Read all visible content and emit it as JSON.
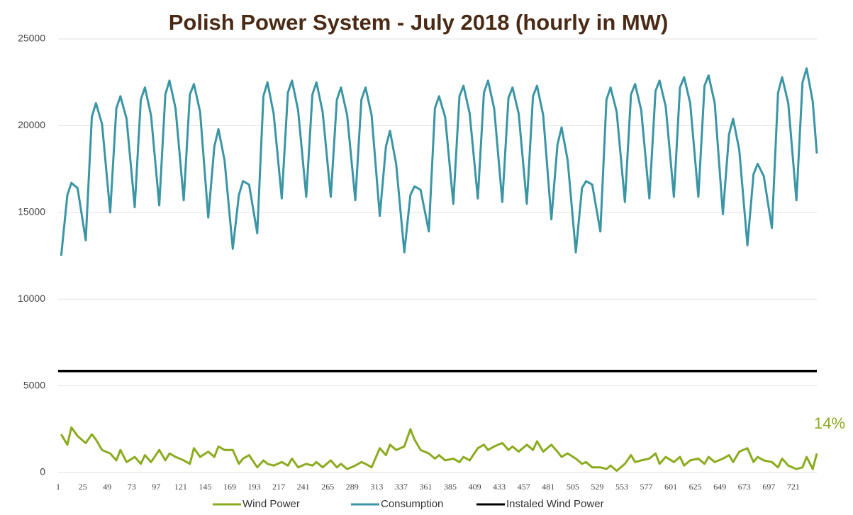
{
  "chart_data": {
    "type": "line",
    "title": "Polish Power System - July 2018 (hourly in MW)",
    "x": [
      4,
      10,
      14,
      20,
      28,
      34,
      38,
      44,
      52,
      58,
      62,
      68,
      76,
      82,
      86,
      92,
      100,
      106,
      110,
      116,
      124,
      130,
      134,
      140,
      148,
      154,
      158,
      164,
      172,
      178,
      182,
      188,
      196,
      202,
      206,
      212,
      220,
      226,
      230,
      236,
      244,
      250,
      254,
      260,
      268,
      274,
      278,
      284,
      292,
      298,
      302,
      308,
      316,
      322,
      326,
      332,
      340,
      346,
      350,
      356,
      364,
      370,
      374,
      380,
      388,
      394,
      398,
      404,
      412,
      418,
      422,
      428,
      436,
      442,
      446,
      452,
      460,
      466,
      470,
      476,
      484,
      490,
      494,
      500,
      508,
      514,
      518,
      524,
      532,
      538,
      542,
      548,
      556,
      562,
      566,
      572,
      580,
      586,
      590,
      596,
      604,
      610,
      614,
      620,
      628,
      634,
      638,
      644,
      652,
      658,
      662,
      668,
      676,
      682,
      686,
      692,
      700,
      706,
      710,
      716,
      724,
      730,
      734,
      740,
      744
    ],
    "series": [
      {
        "name": "Wind Power",
        "color": "#8bab1f",
        "values": [
          2200,
          1600,
          2600,
          2100,
          1700,
          2200,
          1900,
          1300,
          1100,
          700,
          1300,
          600,
          900,
          500,
          1000,
          600,
          1300,
          700,
          1100,
          900,
          700,
          500,
          1400,
          900,
          1200,
          900,
          1500,
          1300,
          1300,
          500,
          800,
          1000,
          300,
          700,
          500,
          400,
          600,
          400,
          800,
          300,
          500,
          400,
          600,
          300,
          700,
          300,
          500,
          200,
          400,
          600,
          500,
          300,
          1400,
          1000,
          1600,
          1300,
          1500,
          2500,
          1900,
          1300,
          1100,
          800,
          1000,
          700,
          800,
          600,
          900,
          700,
          1400,
          1600,
          1300,
          1500,
          1700,
          1300,
          1500,
          1200,
          1600,
          1300,
          1800,
          1200,
          1600,
          1200,
          900,
          1100,
          800,
          500,
          600,
          300,
          300,
          200,
          400,
          100,
          500,
          1000,
          600,
          700,
          800,
          1100,
          500,
          900,
          600,
          900,
          400,
          700,
          800,
          500,
          900,
          600,
          800,
          1000,
          600,
          1200,
          1400,
          600,
          900,
          700,
          600,
          300,
          800,
          400,
          200,
          300,
          900,
          200,
          1100
        ]
      },
      {
        "name": "Consumption",
        "color": "#3a95a4",
        "values": [
          12500,
          16000,
          16700,
          16400,
          13400,
          20500,
          21300,
          20100,
          15000,
          21000,
          21700,
          20400,
          15300,
          21500,
          22200,
          20600,
          15400,
          21800,
          22600,
          21000,
          15700,
          21800,
          22400,
          20800,
          14700,
          18800,
          19800,
          18000,
          12900,
          16000,
          16800,
          16600,
          13800,
          21700,
          22500,
          20700,
          15800,
          21900,
          22600,
          20900,
          15900,
          21800,
          22500,
          20800,
          15900,
          21500,
          22200,
          20600,
          15700,
          21500,
          22200,
          20600,
          14800,
          18800,
          19700,
          17800,
          12700,
          16000,
          16500,
          16300,
          13900,
          21000,
          21700,
          20500,
          15500,
          21700,
          22300,
          20700,
          15800,
          21900,
          22600,
          21000,
          15600,
          21600,
          22200,
          20700,
          15500,
          21700,
          22300,
          20600,
          14600,
          18900,
          19900,
          18000,
          12700,
          16400,
          16800,
          16600,
          13900,
          21500,
          22200,
          20800,
          15600,
          21800,
          22400,
          20900,
          15800,
          22000,
          22600,
          21100,
          15900,
          22200,
          22800,
          21300,
          15900,
          22300,
          22900,
          21300,
          14900,
          19500,
          20400,
          18600,
          13100,
          17200,
          17800,
          17100,
          14100,
          21900,
          22800,
          21300,
          15700,
          22500,
          23300,
          21400,
          18400
        ]
      },
      {
        "name": "Instaled Wind Power",
        "color": "#000000",
        "x": [
          1,
          744
        ],
        "values": [
          5850,
          5850
        ]
      }
    ],
    "annotation": "14%",
    "xlim": [
      1,
      744
    ],
    "xticks": [
      1,
      25,
      49,
      73,
      97,
      121,
      145,
      169,
      193,
      217,
      241,
      265,
      289,
      313,
      337,
      361,
      385,
      409,
      433,
      457,
      481,
      505,
      529,
      553,
      577,
      601,
      625,
      649,
      673,
      697,
      721
    ],
    "ylim": [
      0,
      25000
    ],
    "yticks": [
      0,
      5000,
      10000,
      15000,
      20000,
      25000
    ],
    "grid": true,
    "legend": "bottom"
  }
}
